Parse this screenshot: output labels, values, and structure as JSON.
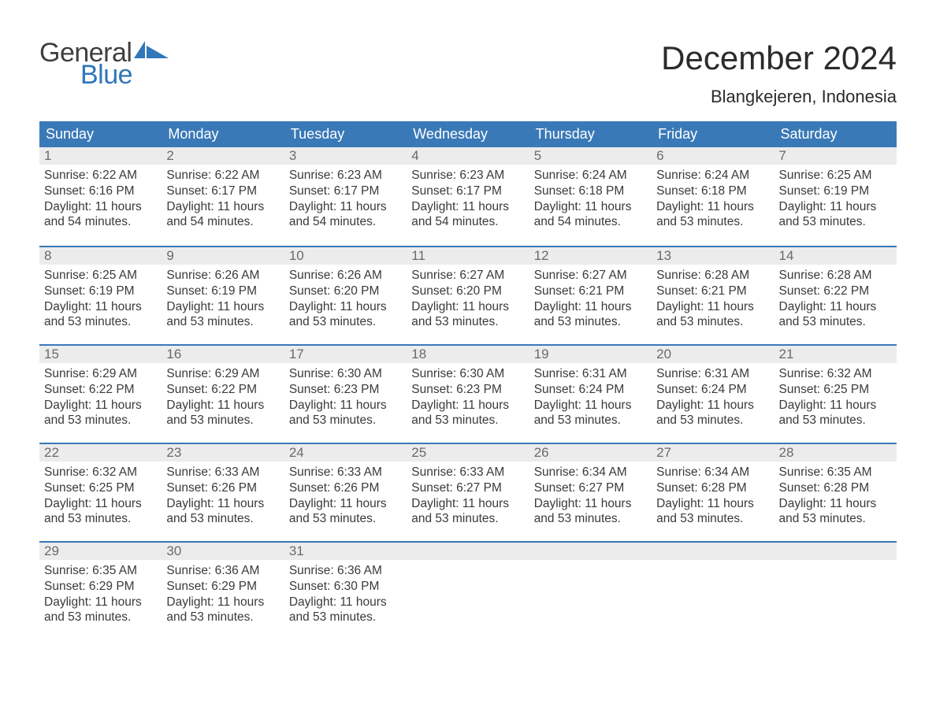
{
  "brand": {
    "word1": "General",
    "word2": "Blue",
    "shape_color": "#2f77b8"
  },
  "title": "December 2024",
  "location": "Blangkejeren, Indonesia",
  "colors": {
    "header_bg": "#3a79b7",
    "header_text": "#ffffff",
    "daynum_bg": "#ececec",
    "daynum_text": "#6a6a6a",
    "body_text": "#3a3a3a",
    "row_border": "#3a79b7",
    "background": "#ffffff"
  },
  "fonts": {
    "title_size": 42,
    "location_size": 22,
    "header_size": 18,
    "body_size": 15.5
  },
  "day_headers": [
    "Sunday",
    "Monday",
    "Tuesday",
    "Wednesday",
    "Thursday",
    "Friday",
    "Saturday"
  ],
  "weeks": [
    [
      {
        "n": "1",
        "sunrise": "6:22 AM",
        "sunset": "6:16 PM",
        "daylight": "11 hours and 54 minutes."
      },
      {
        "n": "2",
        "sunrise": "6:22 AM",
        "sunset": "6:17 PM",
        "daylight": "11 hours and 54 minutes."
      },
      {
        "n": "3",
        "sunrise": "6:23 AM",
        "sunset": "6:17 PM",
        "daylight": "11 hours and 54 minutes."
      },
      {
        "n": "4",
        "sunrise": "6:23 AM",
        "sunset": "6:17 PM",
        "daylight": "11 hours and 54 minutes."
      },
      {
        "n": "5",
        "sunrise": "6:24 AM",
        "sunset": "6:18 PM",
        "daylight": "11 hours and 54 minutes."
      },
      {
        "n": "6",
        "sunrise": "6:24 AM",
        "sunset": "6:18 PM",
        "daylight": "11 hours and 53 minutes."
      },
      {
        "n": "7",
        "sunrise": "6:25 AM",
        "sunset": "6:19 PM",
        "daylight": "11 hours and 53 minutes."
      }
    ],
    [
      {
        "n": "8",
        "sunrise": "6:25 AM",
        "sunset": "6:19 PM",
        "daylight": "11 hours and 53 minutes."
      },
      {
        "n": "9",
        "sunrise": "6:26 AM",
        "sunset": "6:19 PM",
        "daylight": "11 hours and 53 minutes."
      },
      {
        "n": "10",
        "sunrise": "6:26 AM",
        "sunset": "6:20 PM",
        "daylight": "11 hours and 53 minutes."
      },
      {
        "n": "11",
        "sunrise": "6:27 AM",
        "sunset": "6:20 PM",
        "daylight": "11 hours and 53 minutes."
      },
      {
        "n": "12",
        "sunrise": "6:27 AM",
        "sunset": "6:21 PM",
        "daylight": "11 hours and 53 minutes."
      },
      {
        "n": "13",
        "sunrise": "6:28 AM",
        "sunset": "6:21 PM",
        "daylight": "11 hours and 53 minutes."
      },
      {
        "n": "14",
        "sunrise": "6:28 AM",
        "sunset": "6:22 PM",
        "daylight": "11 hours and 53 minutes."
      }
    ],
    [
      {
        "n": "15",
        "sunrise": "6:29 AM",
        "sunset": "6:22 PM",
        "daylight": "11 hours and 53 minutes."
      },
      {
        "n": "16",
        "sunrise": "6:29 AM",
        "sunset": "6:22 PM",
        "daylight": "11 hours and 53 minutes."
      },
      {
        "n": "17",
        "sunrise": "6:30 AM",
        "sunset": "6:23 PM",
        "daylight": "11 hours and 53 minutes."
      },
      {
        "n": "18",
        "sunrise": "6:30 AM",
        "sunset": "6:23 PM",
        "daylight": "11 hours and 53 minutes."
      },
      {
        "n": "19",
        "sunrise": "6:31 AM",
        "sunset": "6:24 PM",
        "daylight": "11 hours and 53 minutes."
      },
      {
        "n": "20",
        "sunrise": "6:31 AM",
        "sunset": "6:24 PM",
        "daylight": "11 hours and 53 minutes."
      },
      {
        "n": "21",
        "sunrise": "6:32 AM",
        "sunset": "6:25 PM",
        "daylight": "11 hours and 53 minutes."
      }
    ],
    [
      {
        "n": "22",
        "sunrise": "6:32 AM",
        "sunset": "6:25 PM",
        "daylight": "11 hours and 53 minutes."
      },
      {
        "n": "23",
        "sunrise": "6:33 AM",
        "sunset": "6:26 PM",
        "daylight": "11 hours and 53 minutes."
      },
      {
        "n": "24",
        "sunrise": "6:33 AM",
        "sunset": "6:26 PM",
        "daylight": "11 hours and 53 minutes."
      },
      {
        "n": "25",
        "sunrise": "6:33 AM",
        "sunset": "6:27 PM",
        "daylight": "11 hours and 53 minutes."
      },
      {
        "n": "26",
        "sunrise": "6:34 AM",
        "sunset": "6:27 PM",
        "daylight": "11 hours and 53 minutes."
      },
      {
        "n": "27",
        "sunrise": "6:34 AM",
        "sunset": "6:28 PM",
        "daylight": "11 hours and 53 minutes."
      },
      {
        "n": "28",
        "sunrise": "6:35 AM",
        "sunset": "6:28 PM",
        "daylight": "11 hours and 53 minutes."
      }
    ],
    [
      {
        "n": "29",
        "sunrise": "6:35 AM",
        "sunset": "6:29 PM",
        "daylight": "11 hours and 53 minutes."
      },
      {
        "n": "30",
        "sunrise": "6:36 AM",
        "sunset": "6:29 PM",
        "daylight": "11 hours and 53 minutes."
      },
      {
        "n": "31",
        "sunrise": "6:36 AM",
        "sunset": "6:30 PM",
        "daylight": "11 hours and 53 minutes."
      },
      {
        "empty": true
      },
      {
        "empty": true
      },
      {
        "empty": true
      },
      {
        "empty": true
      }
    ]
  ],
  "labels": {
    "sunrise": "Sunrise: ",
    "sunset": "Sunset: ",
    "daylight": "Daylight: "
  }
}
